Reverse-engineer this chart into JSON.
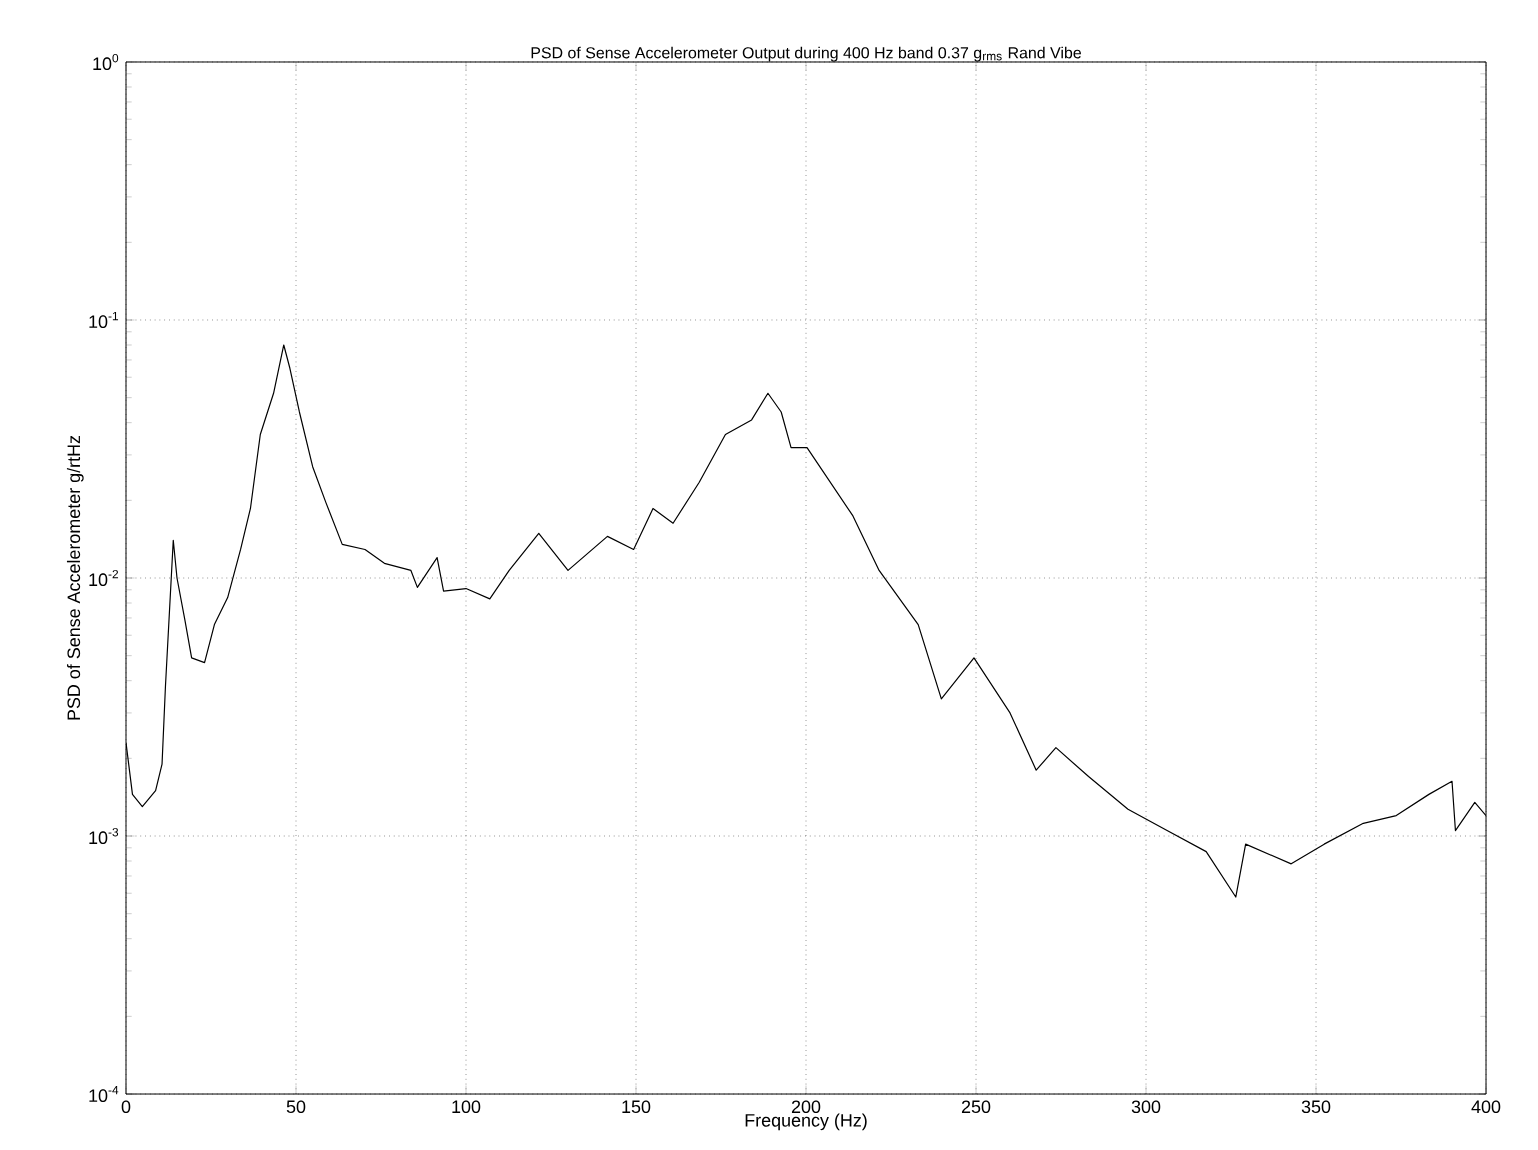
{
  "chart_data": {
    "type": "line",
    "title": "PSD of Sense Accelerometer Output during 400 Hz band 0.37 g$_{rms}$ Rand Vibe",
    "xlabel": "Frequency (Hz)",
    "ylabel": "PSD of Sense Accelerometer g/rtHz",
    "log": "y",
    "grid": true,
    "line_style": "solid",
    "xlim": [
      0,
      400
    ],
    "ylim": [
      0.0001,
      1
    ],
    "xticks": [
      0,
      50,
      100,
      150,
      200,
      250,
      300,
      350,
      400
    ],
    "yticks": [
      {
        "value": 0.0001,
        "label": "10$^{-4}$"
      },
      {
        "value": 0.001,
        "label": "10$^{-3}$"
      },
      {
        "value": 0.01,
        "label": "10$^{-2}$"
      },
      {
        "value": 0.1,
        "label": "10$^{-1}$"
      },
      {
        "value": 1,
        "label": "10$^{0}$"
      }
    ],
    "series": [
      {
        "color": "#000000",
        "x": [
          0,
          1.9,
          4.8,
          8.7,
          10.6,
          11.6,
          13.9,
          15,
          17.3,
          19.3,
          23.1,
          26,
          29.9,
          33.7,
          36.6,
          39.5,
          43.4,
          46.4,
          48.2,
          51,
          54.9,
          58.8,
          63.6,
          70.3,
          76,
          83.8,
          85.7,
          91.5,
          93.4,
          100,
          107,
          112.7,
          121.4,
          130,
          141.6,
          149.3,
          155,
          160.9,
          168.6,
          176.3,
          184,
          188.8,
          192.7,
          195.6,
          200.3,
          213.8,
          221.5,
          233,
          239.8,
          249.4,
          260,
          267.7,
          273.5,
          283.1,
          294.7,
          306.2,
          317.7,
          326.4,
          329.3,
          342.7,
          352.4,
          363.9,
          373.6,
          383.2,
          390,
          391,
          396.7,
          400
        ],
        "values": [
          0.0023,
          0.00145,
          0.0013,
          0.0015,
          0.0019,
          0.0038,
          0.014,
          0.01,
          0.0069,
          0.0049,
          0.0047,
          0.0066,
          0.0084,
          0.0129,
          0.0186,
          0.036,
          0.052,
          0.08,
          0.065,
          0.044,
          0.027,
          0.0196,
          0.0135,
          0.0129,
          0.0114,
          0.0107,
          0.0092,
          0.012,
          0.0089,
          0.0091,
          0.0083,
          0.0107,
          0.0149,
          0.0107,
          0.0145,
          0.0129,
          0.0186,
          0.0163,
          0.0235,
          0.036,
          0.041,
          0.052,
          0.044,
          0.032,
          0.032,
          0.0174,
          0.0107,
          0.0066,
          0.0034,
          0.0049,
          0.003,
          0.0018,
          0.0022,
          0.0017,
          0.00127,
          0.00105,
          0.00087,
          0.00058,
          0.00093,
          0.00078,
          0.00093,
          0.00112,
          0.0012,
          0.00145,
          0.00163,
          0.00105,
          0.00135,
          0.0012
        ]
      }
    ]
  }
}
